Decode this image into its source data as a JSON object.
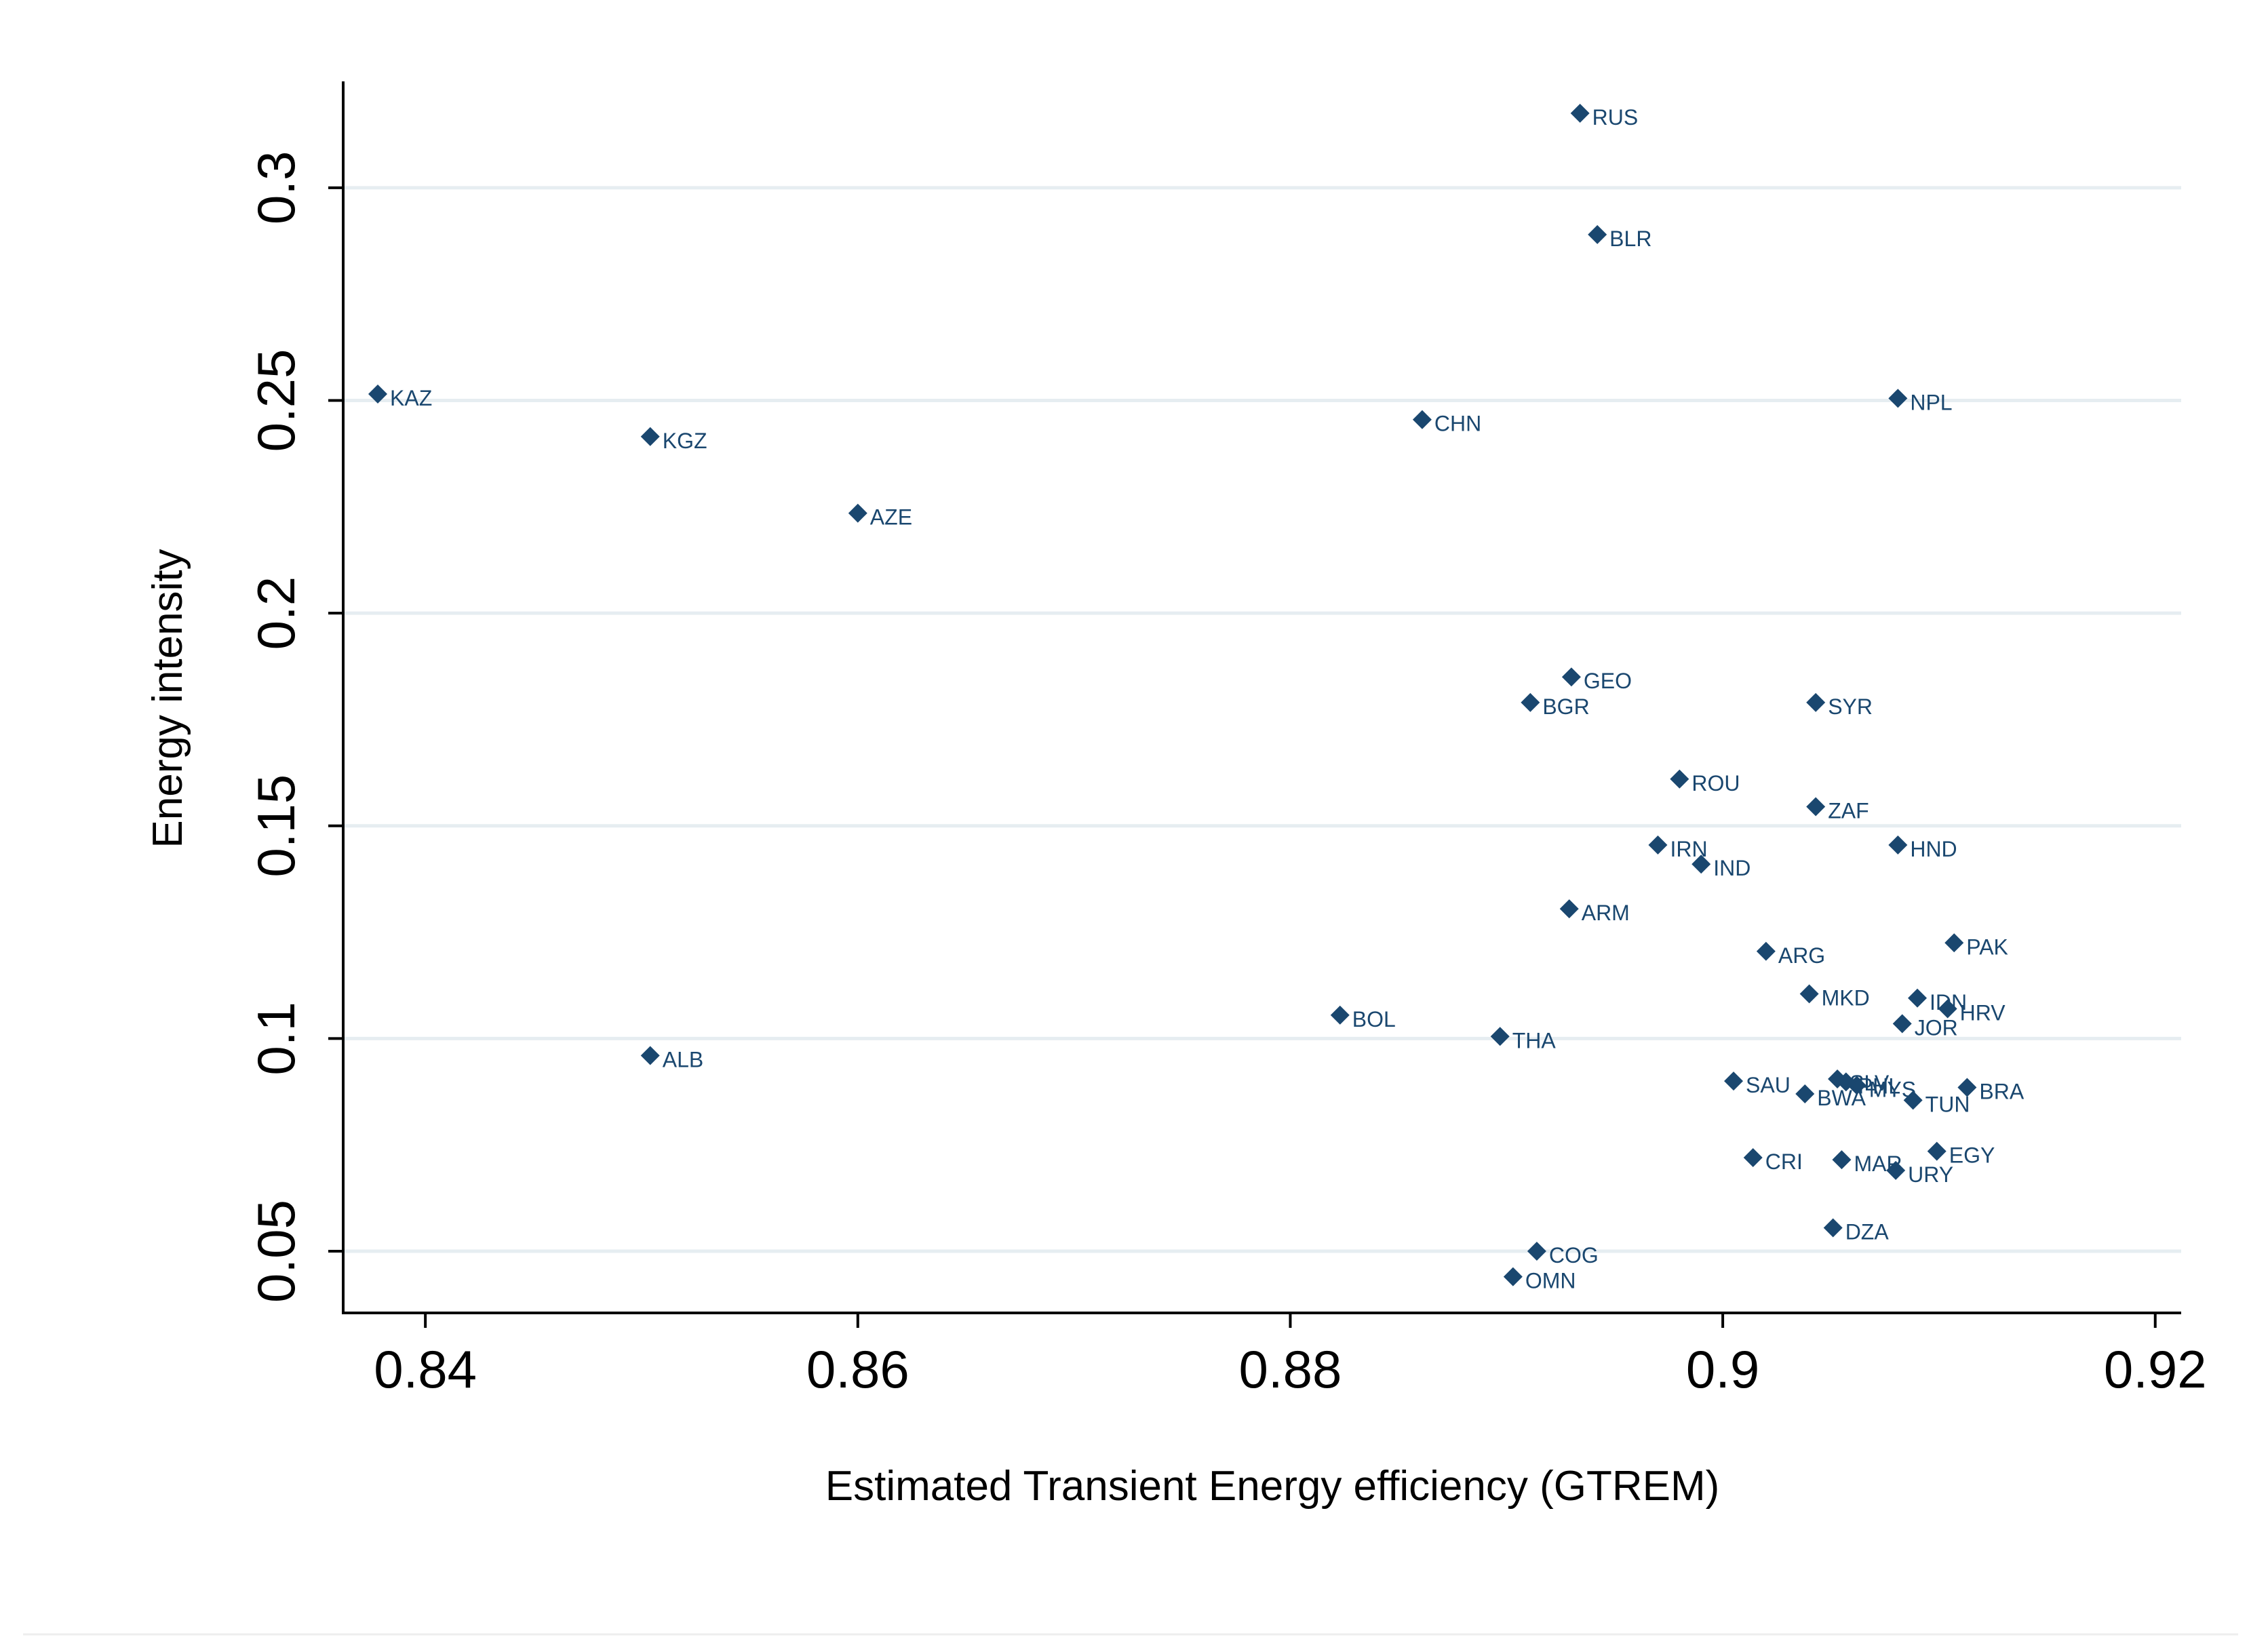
{
  "chart_data": {
    "type": "scatter",
    "title": "",
    "xlabel": "Estimated Transient Energy efficiency (GTREM)",
    "ylabel": "Energy intensity",
    "xlim": [
      0.8362,
      0.9212
    ],
    "ylim": [
      0.0355,
      0.325
    ],
    "x_ticks": [
      0.84,
      0.86,
      0.88,
      0.9,
      0.92
    ],
    "x_tick_labels": [
      "0.84",
      "0.86",
      "0.88",
      "0.9",
      "0.92"
    ],
    "y_ticks": [
      0.05,
      0.1,
      0.15,
      0.2,
      0.25,
      0.3
    ],
    "y_tick_labels": [
      "0.05",
      "0.1",
      "0.15",
      "0.2",
      "0.25",
      "0.3"
    ],
    "grid": "horizontal",
    "marker": "diamond",
    "marker_color": "#1a476f",
    "points": [
      {
        "label": "RUS",
        "x": 0.8934,
        "y": 0.3175
      },
      {
        "label": "BLR",
        "x": 0.8942,
        "y": 0.289
      },
      {
        "label": "KAZ",
        "x": 0.8378,
        "y": 0.2515
      },
      {
        "label": "NPL",
        "x": 0.9081,
        "y": 0.2505
      },
      {
        "label": "KGZ",
        "x": 0.8504,
        "y": 0.2415
      },
      {
        "label": "CHN",
        "x": 0.8861,
        "y": 0.2455
      },
      {
        "label": "AZE",
        "x": 0.86,
        "y": 0.2235
      },
      {
        "label": "GEO",
        "x": 0.893,
        "y": 0.185
      },
      {
        "label": "BGR",
        "x": 0.8911,
        "y": 0.179
      },
      {
        "label": "SYR",
        "x": 0.9043,
        "y": 0.179
      },
      {
        "label": "ROU",
        "x": 0.898,
        "y": 0.161
      },
      {
        "label": "ZAF",
        "x": 0.9043,
        "y": 0.1545
      },
      {
        "label": "IRN",
        "x": 0.897,
        "y": 0.1455
      },
      {
        "label": "HND",
        "x": 0.9081,
        "y": 0.1455
      },
      {
        "label": "IND",
        "x": 0.899,
        "y": 0.141
      },
      {
        "label": "ARM",
        "x": 0.8929,
        "y": 0.1305
      },
      {
        "label": "ARG",
        "x": 0.902,
        "y": 0.1205
      },
      {
        "label": "PAK",
        "x": 0.9107,
        "y": 0.1225
      },
      {
        "label": "MKD",
        "x": 0.904,
        "y": 0.1105
      },
      {
        "label": "IDN",
        "x": 0.909,
        "y": 0.1095
      },
      {
        "label": "HRV",
        "x": 0.9104,
        "y": 0.107
      },
      {
        "label": "JOR",
        "x": 0.9083,
        "y": 0.1035
      },
      {
        "label": "BOL",
        "x": 0.8823,
        "y": 0.1055
      },
      {
        "label": "THA",
        "x": 0.8897,
        "y": 0.1005
      },
      {
        "label": "ALB",
        "x": 0.8504,
        "y": 0.096
      },
      {
        "label": "SAU",
        "x": 0.9005,
        "y": 0.09
      },
      {
        "label": "SLV",
        "x": 0.9053,
        "y": 0.0905
      },
      {
        "label": "PHL",
        "x": 0.9057,
        "y": 0.0898
      },
      {
        "label": "MYS",
        "x": 0.9062,
        "y": 0.089
      },
      {
        "label": "BWA",
        "x": 0.9038,
        "y": 0.087
      },
      {
        "label": "TUN",
        "x": 0.9088,
        "y": 0.0855
      },
      {
        "label": "BRA",
        "x": 0.9113,
        "y": 0.0885
      },
      {
        "label": "EGY",
        "x": 0.9099,
        "y": 0.0735
      },
      {
        "label": "CRI",
        "x": 0.9014,
        "y": 0.072
      },
      {
        "label": "MAR",
        "x": 0.9055,
        "y": 0.0715
      },
      {
        "label": "URY",
        "x": 0.908,
        "y": 0.069
      },
      {
        "label": "DZA",
        "x": 0.9051,
        "y": 0.0555
      },
      {
        "label": "COG",
        "x": 0.8914,
        "y": 0.05
      },
      {
        "label": "OMN",
        "x": 0.8903,
        "y": 0.044
      }
    ]
  }
}
